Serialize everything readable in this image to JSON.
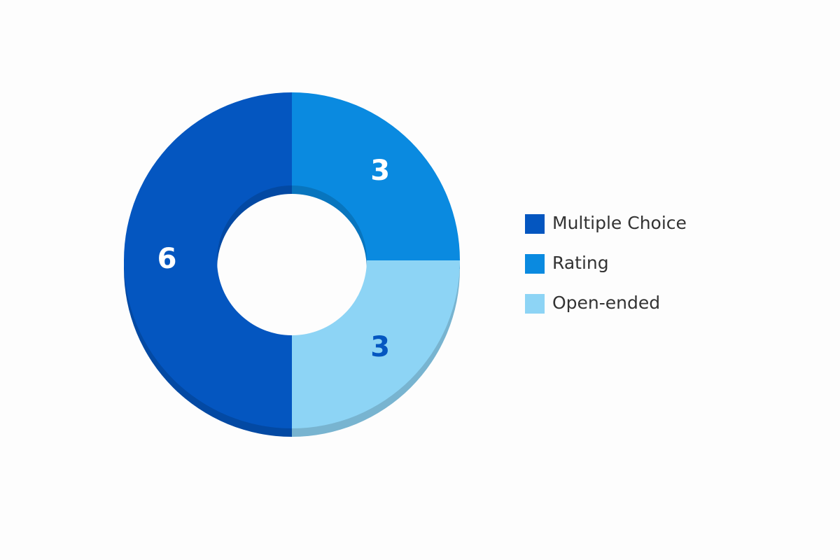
{
  "chart_data": {
    "type": "donut",
    "categories": [
      "Multiple Choice",
      "Rating",
      "Open-ended"
    ],
    "values": [
      6,
      3,
      3
    ],
    "colors": [
      "#0456c0",
      "#0a8ae0",
      "#8dd4f5"
    ],
    "label_colors": [
      "#ffffff",
      "#ffffff",
      "#0456c0"
    ]
  }
}
